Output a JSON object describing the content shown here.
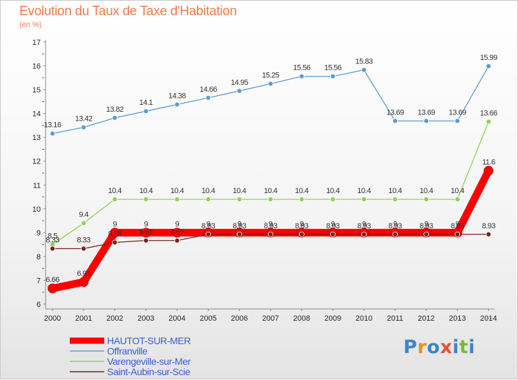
{
  "title": "Evolution du Taux de Taxe d'Habitation",
  "subtitle": "(en %)",
  "logo": {
    "text": "Proxiti",
    "colors": [
      "#3a86c8",
      "#f08c1e",
      "#3a86c8",
      "#e8503a",
      "#3a86c8",
      "#7ab83a",
      "#3a86c8"
    ]
  },
  "chart_data": {
    "type": "line",
    "x": [
      "2000",
      "2001",
      "2002",
      "2003",
      "2004",
      "2005",
      "2006",
      "2007",
      "2008",
      "2009",
      "2010",
      "2011",
      "2012",
      "2013",
      "2014"
    ],
    "ylim": [
      6,
      17
    ],
    "yticks": [
      "6",
      "7",
      "8",
      "9",
      "10",
      "11",
      "12",
      "13",
      "14",
      "15",
      "16",
      "17"
    ],
    "grid": false,
    "legend_position": "bottom-left",
    "series": [
      {
        "name": "HAUTOT-SUR-MER",
        "color": "#ff0000",
        "values": [
          6.66,
          6.93,
          9,
          9,
          9,
          9,
          9,
          9,
          9,
          9,
          9,
          9,
          9,
          9,
          11.6
        ],
        "labels": [
          "6.66",
          "6.93",
          "9",
          "9",
          "9",
          "9",
          "9",
          "9",
          "9",
          "9",
          "9",
          "9",
          "9",
          "9",
          "11.6"
        ]
      },
      {
        "name": "Offranville",
        "color": "#5b9bd5",
        "values": [
          13.16,
          13.42,
          13.82,
          14.1,
          14.38,
          14.66,
          14.95,
          15.25,
          15.56,
          15.56,
          15.83,
          13.69,
          13.69,
          13.69,
          15.99
        ],
        "labels": [
          "13.16",
          "13.42",
          "13.82",
          "14.1",
          "14.38",
          "14.66",
          "14.95",
          "15.25",
          "15.56",
          "15.56",
          "15.83",
          "13.69",
          "13.69",
          "13.69",
          "15.99"
        ]
      },
      {
        "name": "Varengeville-sur-Mer",
        "color": "#8ed24e",
        "values": [
          8.5,
          9.4,
          10.4,
          10.4,
          10.4,
          10.4,
          10.4,
          10.4,
          10.4,
          10.4,
          10.4,
          10.4,
          10.4,
          10.4,
          13.66
        ],
        "labels": [
          "8.5",
          "9.4",
          "10.4",
          "10.4",
          "10.4",
          "10.4",
          "10.4",
          "10.4",
          "10.4",
          "10.4",
          "10.4",
          "10.4",
          "10.4",
          "10.4",
          "13.66"
        ]
      },
      {
        "name": "Saint-Aubin-sur-Scie",
        "color": "#7a2020",
        "values": [
          8.33,
          8.33,
          8.59,
          8.67,
          8.67,
          8.93,
          8.93,
          8.93,
          8.93,
          8.93,
          8.93,
          8.93,
          8.93,
          8.93,
          8.93
        ],
        "labels": [
          "8.33",
          "8.33",
          "8.59",
          "8.67",
          "8.67",
          "8.93",
          "8.93",
          "8.93",
          "8.93",
          "8.93",
          "8.93",
          "8.93",
          "8.93",
          "8.93",
          "8.93"
        ]
      }
    ]
  }
}
